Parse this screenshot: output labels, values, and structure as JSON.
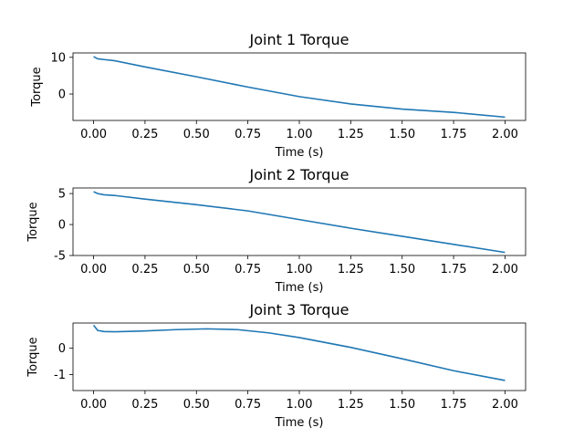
{
  "chart_data": [
    {
      "type": "line",
      "title": "Joint 1 Torque",
      "xlabel": "Time (s)",
      "ylabel": "Torque",
      "xlim": [
        -0.1,
        2.1
      ],
      "ylim": [
        -7.2,
        11.2
      ],
      "xticks": [
        "0.00",
        "0.25",
        "0.50",
        "0.75",
        "1.00",
        "1.25",
        "1.50",
        "1.75",
        "2.00"
      ],
      "yticks": [
        10,
        0
      ],
      "grid": false,
      "series": [
        {
          "color": "#1f77b4",
          "x": [
            0.0,
            0.02,
            0.05,
            0.1,
            0.25,
            0.5,
            0.75,
            1.0,
            1.25,
            1.5,
            1.75,
            2.0
          ],
          "y": [
            10.2,
            9.6,
            9.4,
            9.1,
            7.4,
            4.7,
            1.9,
            -0.7,
            -2.7,
            -4.1,
            -5.0,
            -6.3
          ]
        }
      ]
    },
    {
      "type": "line",
      "title": "Joint 2 Torque",
      "xlabel": "Time (s)",
      "ylabel": "Torque",
      "xlim": [
        -0.1,
        2.1
      ],
      "ylim": [
        -5.0,
        5.9
      ],
      "xticks": [
        "0.00",
        "0.25",
        "0.50",
        "0.75",
        "1.00",
        "1.25",
        "1.50",
        "1.75",
        "2.00"
      ],
      "yticks": [
        5,
        0,
        -5
      ],
      "grid": false,
      "series": [
        {
          "color": "#1f77b4",
          "x": [
            0.0,
            0.02,
            0.05,
            0.1,
            0.25,
            0.5,
            0.75,
            1.0,
            1.25,
            1.5,
            1.75,
            2.0
          ],
          "y": [
            5.3,
            5.0,
            4.8,
            4.7,
            4.1,
            3.2,
            2.2,
            0.8,
            -0.6,
            -1.9,
            -3.2,
            -4.5
          ]
        }
      ]
    },
    {
      "type": "line",
      "title": "Joint 3 Torque",
      "xlabel": "Time (s)",
      "ylabel": "Torque",
      "xlim": [
        -0.1,
        2.1
      ],
      "ylim": [
        -1.6,
        0.95
      ],
      "xticks": [
        "0.00",
        "0.25",
        "0.50",
        "0.75",
        "1.00",
        "1.25",
        "1.50",
        "1.75",
        "2.00"
      ],
      "yticks": [
        0,
        -1
      ],
      "grid": false,
      "series": [
        {
          "color": "#1f77b4",
          "x": [
            0.0,
            0.02,
            0.05,
            0.1,
            0.25,
            0.4,
            0.55,
            0.7,
            0.85,
            1.0,
            1.25,
            1.5,
            1.75,
            2.0
          ],
          "y": [
            0.87,
            0.67,
            0.63,
            0.62,
            0.65,
            0.7,
            0.73,
            0.7,
            0.58,
            0.4,
            0.03,
            -0.4,
            -0.85,
            -1.22
          ]
        }
      ]
    }
  ]
}
